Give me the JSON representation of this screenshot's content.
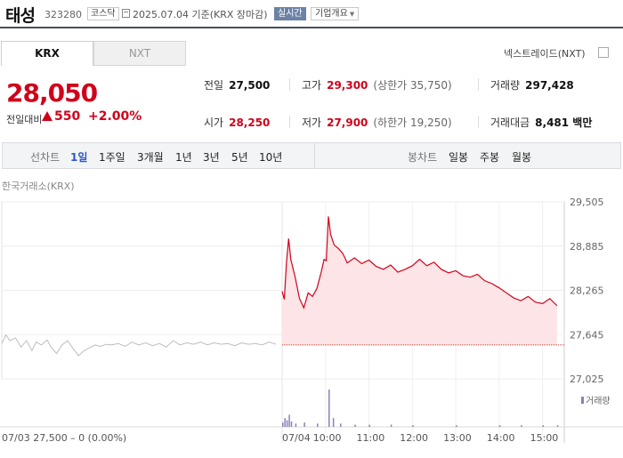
{
  "header": {
    "name": "태성",
    "code": "323280",
    "market": "코스닥",
    "date": "2025.07.04",
    "basis": "기준(KRX 장마감)",
    "realtime": "실시간",
    "company_info": "기업개요"
  },
  "tabs": [
    "KRX",
    "NXT"
  ],
  "nxt_link": "넥스트레이드(NXT)",
  "price": {
    "current": "28,050",
    "change_label": "전일대비",
    "change": "550",
    "change_pct": "+2.00%"
  },
  "stats": {
    "prev_label": "전일",
    "prev": "27,500",
    "high_label": "고가",
    "high": "29,300",
    "upper_limit": "(상한가 35,750)",
    "volume_label": "거래량",
    "volume": "297,428",
    "open_label": "시가",
    "open": "28,250",
    "low_label": "저가",
    "low": "27,900",
    "lower_limit": "(하한가 19,250)",
    "amount_label": "거래대금",
    "amount": "8,481 백만"
  },
  "periods": {
    "line_label": "선차트",
    "line_items": [
      "1일",
      "1주일",
      "3개월",
      "1년",
      "3년",
      "5년",
      "10년"
    ],
    "candle_label": "봉차트",
    "candle_items": [
      "일봉",
      "주봉",
      "월봉"
    ]
  },
  "chart_source": "한국거래소(KRX)",
  "colors": {
    "up": "#d0021b",
    "down": "#1f5bd1",
    "accent": "#2c58c8"
  },
  "chart_data": {
    "type": "line",
    "y_ticks": [
      "29,505",
      "28,885",
      "28,265",
      "27,645",
      "27,025"
    ],
    "ylim": [
      27025,
      29505
    ],
    "baseline": 27500,
    "x_labels": [
      "07/03",
      "07/04",
      "10:00",
      "11:00",
      "12:00",
      "13:00",
      "14:00",
      "15:00"
    ],
    "prev_day_summary": "07/03  27,500 – 0 (0.00%)",
    "volume_legend": "거래량",
    "prev_day": [
      [
        0.0,
        27520
      ],
      [
        0.3,
        27640
      ],
      [
        0.6,
        27560
      ],
      [
        1.0,
        27600
      ],
      [
        1.4,
        27470
      ],
      [
        1.8,
        27560
      ],
      [
        2.2,
        27420
      ],
      [
        2.5,
        27540
      ],
      [
        2.9,
        27500
      ],
      [
        3.3,
        27570
      ],
      [
        3.6,
        27470
      ],
      [
        4.0,
        27380
      ],
      [
        4.4,
        27500
      ],
      [
        4.8,
        27560
      ],
      [
        5.2,
        27450
      ],
      [
        5.6,
        27350
      ],
      [
        6.0,
        27420
      ],
      [
        6.4,
        27460
      ],
      [
        6.8,
        27500
      ],
      [
        7.2,
        27480
      ],
      [
        7.6,
        27510
      ],
      [
        8.0,
        27500
      ],
      [
        8.5,
        27520
      ],
      [
        9.0,
        27480
      ],
      [
        9.5,
        27540
      ],
      [
        10.0,
        27500
      ],
      [
        10.5,
        27530
      ],
      [
        11.0,
        27490
      ],
      [
        11.5,
        27520
      ],
      [
        12.0,
        27470
      ],
      [
        12.5,
        27560
      ],
      [
        13.0,
        27500
      ],
      [
        13.5,
        27530
      ],
      [
        14.0,
        27510
      ],
      [
        14.5,
        27540
      ],
      [
        15.0,
        27500
      ],
      [
        15.5,
        27530
      ],
      [
        16.0,
        27510
      ],
      [
        16.5,
        27520
      ],
      [
        17.0,
        27490
      ],
      [
        17.5,
        27530
      ],
      [
        18.0,
        27510
      ],
      [
        18.5,
        27520
      ],
      [
        19.0,
        27500
      ],
      [
        19.5,
        27540
      ],
      [
        20.0,
        27510
      ]
    ],
    "today": [
      [
        "09:00",
        28250
      ],
      [
        "09:03",
        28140
      ],
      [
        "09:06",
        28650
      ],
      [
        "09:09",
        28990
      ],
      [
        "09:12",
        28700
      ],
      [
        "09:18",
        28450
      ],
      [
        "09:24",
        28150
      ],
      [
        "09:30",
        28020
      ],
      [
        "09:36",
        28230
      ],
      [
        "09:42",
        28180
      ],
      [
        "09:48",
        28290
      ],
      [
        "09:54",
        28520
      ],
      [
        "09:58",
        28700
      ],
      [
        "10:01",
        28680
      ],
      [
        "10:04",
        29300
      ],
      [
        "10:07",
        29050
      ],
      [
        "10:12",
        28900
      ],
      [
        "10:18",
        28850
      ],
      [
        "10:24",
        28780
      ],
      [
        "10:30",
        28650
      ],
      [
        "10:40",
        28720
      ],
      [
        "10:50",
        28640
      ],
      [
        "11:00",
        28690
      ],
      [
        "11:10",
        28600
      ],
      [
        "11:20",
        28560
      ],
      [
        "11:30",
        28620
      ],
      [
        "11:40",
        28520
      ],
      [
        "11:50",
        28560
      ],
      [
        "12:00",
        28610
      ],
      [
        "12:10",
        28700
      ],
      [
        "12:20",
        28610
      ],
      [
        "12:30",
        28660
      ],
      [
        "12:40",
        28560
      ],
      [
        "12:50",
        28510
      ],
      [
        "13:00",
        28540
      ],
      [
        "13:10",
        28470
      ],
      [
        "13:20",
        28450
      ],
      [
        "13:30",
        28490
      ],
      [
        "13:40",
        28400
      ],
      [
        "13:50",
        28360
      ],
      [
        "14:00",
        28300
      ],
      [
        "14:10",
        28230
      ],
      [
        "14:20",
        28160
      ],
      [
        "14:30",
        28120
      ],
      [
        "14:40",
        28180
      ],
      [
        "14:50",
        28100
      ],
      [
        "15:00",
        28080
      ],
      [
        "15:10",
        28150
      ],
      [
        "15:20",
        28050
      ]
    ],
    "volume": [
      [
        "09:00",
        4
      ],
      [
        "09:03",
        8
      ],
      [
        "09:06",
        6
      ],
      [
        "09:09",
        11
      ],
      [
        "09:12",
        5
      ],
      [
        "09:18",
        3
      ],
      [
        "09:30",
        4
      ],
      [
        "09:48",
        3
      ],
      [
        "10:04",
        34
      ],
      [
        "10:10",
        8
      ],
      [
        "10:20",
        3
      ],
      [
        "10:40",
        2
      ],
      [
        "11:00",
        2
      ],
      [
        "11:30",
        2
      ],
      [
        "12:00",
        1.5
      ],
      [
        "13:00",
        1.5
      ],
      [
        "14:00",
        1.5
      ],
      [
        "14:30",
        1.5
      ],
      [
        "15:00",
        1.5
      ],
      [
        "15:20",
        1.5
      ]
    ]
  }
}
